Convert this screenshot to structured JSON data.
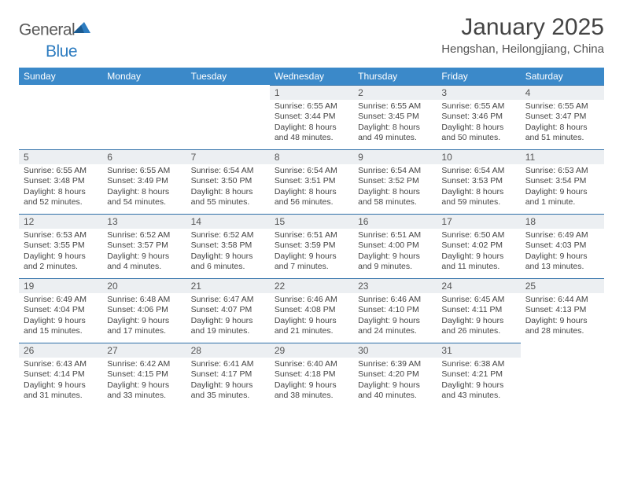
{
  "brand": {
    "part1": "General",
    "part2": "Blue"
  },
  "title": "January 2025",
  "location": "Hengshan, Heilongjiang, China",
  "colors": {
    "header_bg": "#3b89c9",
    "header_text": "#ffffff",
    "rule": "#2f6fa8",
    "daynum_bg": "#eceff2",
    "body_text": "#444444"
  },
  "weekdays": [
    "Sunday",
    "Monday",
    "Tuesday",
    "Wednesday",
    "Thursday",
    "Friday",
    "Saturday"
  ],
  "weeks": [
    [
      null,
      null,
      null,
      {
        "n": "1",
        "sr": "6:55 AM",
        "ss": "3:44 PM",
        "dl": "8 hours and 48 minutes."
      },
      {
        "n": "2",
        "sr": "6:55 AM",
        "ss": "3:45 PM",
        "dl": "8 hours and 49 minutes."
      },
      {
        "n": "3",
        "sr": "6:55 AM",
        "ss": "3:46 PM",
        "dl": "8 hours and 50 minutes."
      },
      {
        "n": "4",
        "sr": "6:55 AM",
        "ss": "3:47 PM",
        "dl": "8 hours and 51 minutes."
      }
    ],
    [
      {
        "n": "5",
        "sr": "6:55 AM",
        "ss": "3:48 PM",
        "dl": "8 hours and 52 minutes."
      },
      {
        "n": "6",
        "sr": "6:55 AM",
        "ss": "3:49 PM",
        "dl": "8 hours and 54 minutes."
      },
      {
        "n": "7",
        "sr": "6:54 AM",
        "ss": "3:50 PM",
        "dl": "8 hours and 55 minutes."
      },
      {
        "n": "8",
        "sr": "6:54 AM",
        "ss": "3:51 PM",
        "dl": "8 hours and 56 minutes."
      },
      {
        "n": "9",
        "sr": "6:54 AM",
        "ss": "3:52 PM",
        "dl": "8 hours and 58 minutes."
      },
      {
        "n": "10",
        "sr": "6:54 AM",
        "ss": "3:53 PM",
        "dl": "8 hours and 59 minutes."
      },
      {
        "n": "11",
        "sr": "6:53 AM",
        "ss": "3:54 PM",
        "dl": "9 hours and 1 minute."
      }
    ],
    [
      {
        "n": "12",
        "sr": "6:53 AM",
        "ss": "3:55 PM",
        "dl": "9 hours and 2 minutes."
      },
      {
        "n": "13",
        "sr": "6:52 AM",
        "ss": "3:57 PM",
        "dl": "9 hours and 4 minutes."
      },
      {
        "n": "14",
        "sr": "6:52 AM",
        "ss": "3:58 PM",
        "dl": "9 hours and 6 minutes."
      },
      {
        "n": "15",
        "sr": "6:51 AM",
        "ss": "3:59 PM",
        "dl": "9 hours and 7 minutes."
      },
      {
        "n": "16",
        "sr": "6:51 AM",
        "ss": "4:00 PM",
        "dl": "9 hours and 9 minutes."
      },
      {
        "n": "17",
        "sr": "6:50 AM",
        "ss": "4:02 PM",
        "dl": "9 hours and 11 minutes."
      },
      {
        "n": "18",
        "sr": "6:49 AM",
        "ss": "4:03 PM",
        "dl": "9 hours and 13 minutes."
      }
    ],
    [
      {
        "n": "19",
        "sr": "6:49 AM",
        "ss": "4:04 PM",
        "dl": "9 hours and 15 minutes."
      },
      {
        "n": "20",
        "sr": "6:48 AM",
        "ss": "4:06 PM",
        "dl": "9 hours and 17 minutes."
      },
      {
        "n": "21",
        "sr": "6:47 AM",
        "ss": "4:07 PM",
        "dl": "9 hours and 19 minutes."
      },
      {
        "n": "22",
        "sr": "6:46 AM",
        "ss": "4:08 PM",
        "dl": "9 hours and 21 minutes."
      },
      {
        "n": "23",
        "sr": "6:46 AM",
        "ss": "4:10 PM",
        "dl": "9 hours and 24 minutes."
      },
      {
        "n": "24",
        "sr": "6:45 AM",
        "ss": "4:11 PM",
        "dl": "9 hours and 26 minutes."
      },
      {
        "n": "25",
        "sr": "6:44 AM",
        "ss": "4:13 PM",
        "dl": "9 hours and 28 minutes."
      }
    ],
    [
      {
        "n": "26",
        "sr": "6:43 AM",
        "ss": "4:14 PM",
        "dl": "9 hours and 31 minutes."
      },
      {
        "n": "27",
        "sr": "6:42 AM",
        "ss": "4:15 PM",
        "dl": "9 hours and 33 minutes."
      },
      {
        "n": "28",
        "sr": "6:41 AM",
        "ss": "4:17 PM",
        "dl": "9 hours and 35 minutes."
      },
      {
        "n": "29",
        "sr": "6:40 AM",
        "ss": "4:18 PM",
        "dl": "9 hours and 38 minutes."
      },
      {
        "n": "30",
        "sr": "6:39 AM",
        "ss": "4:20 PM",
        "dl": "9 hours and 40 minutes."
      },
      {
        "n": "31",
        "sr": "6:38 AM",
        "ss": "4:21 PM",
        "dl": "9 hours and 43 minutes."
      },
      null
    ]
  ],
  "labels": {
    "sunrise": "Sunrise:",
    "sunset": "Sunset:",
    "daylight": "Daylight:"
  }
}
